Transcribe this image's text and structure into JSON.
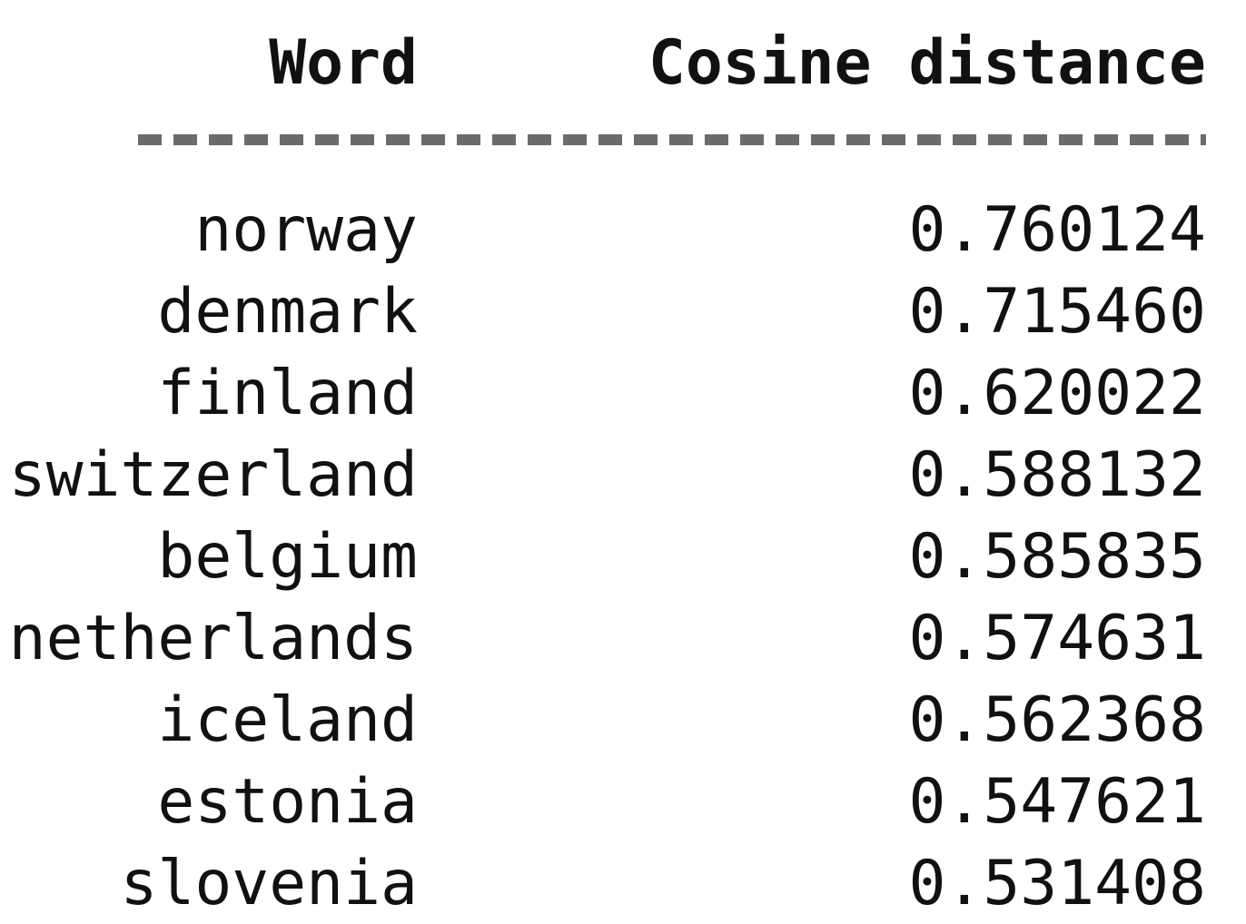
{
  "table": {
    "headers": {
      "word": "Word",
      "distance": "Cosine distance"
    },
    "rows": [
      {
        "word": "norway",
        "distance": "0.760124"
      },
      {
        "word": "denmark",
        "distance": "0.715460"
      },
      {
        "word": "finland",
        "distance": "0.620022"
      },
      {
        "word": "switzerland",
        "distance": "0.588132"
      },
      {
        "word": "belgium",
        "distance": "0.585835"
      },
      {
        "word": "netherlands",
        "distance": "0.574631"
      },
      {
        "word": "iceland",
        "distance": "0.562368"
      },
      {
        "word": "estonia",
        "distance": "0.547621"
      },
      {
        "word": "slovenia",
        "distance": "0.531408"
      }
    ]
  },
  "colors": {
    "text": "#111111",
    "separator": "#6b6b6b",
    "background": "#ffffff"
  }
}
